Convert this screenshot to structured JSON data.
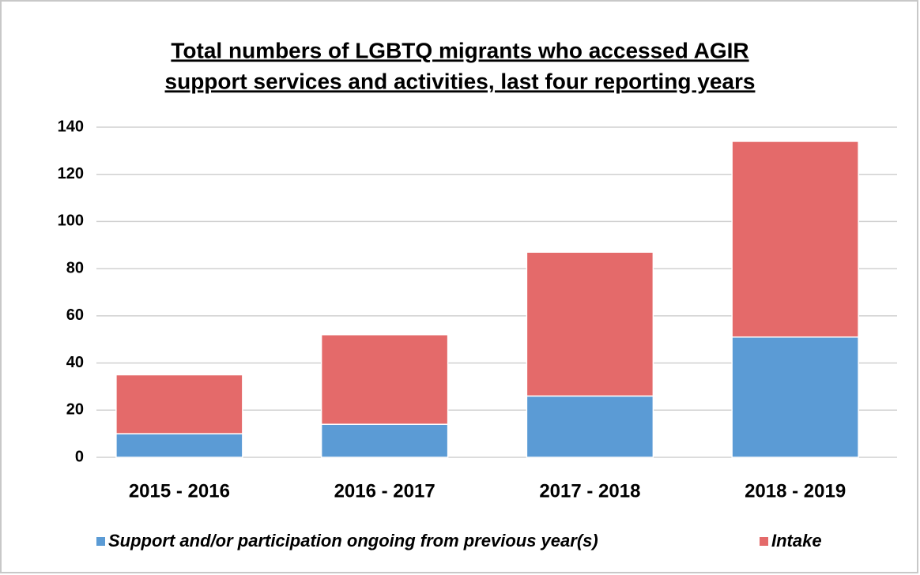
{
  "chart_data": {
    "type": "stacked-bar",
    "title": [
      "Total numbers of LGBTQ migrants who accessed AGIR",
      "support services and activities, last four reporting years"
    ],
    "categories": [
      "2015 - 2016",
      "2016 - 2017",
      "2017 - 2018",
      "2018 - 2019"
    ],
    "series": [
      {
        "name": "Support and/or participation ongoing from previous year(s)",
        "color": "#5b9bd5",
        "values": [
          10,
          14,
          26,
          51
        ]
      },
      {
        "name": "Intake",
        "color": "#e46a6a",
        "values": [
          25,
          38,
          61,
          83
        ]
      }
    ],
    "ylim": [
      0,
      140
    ],
    "yticks": [
      0,
      20,
      40,
      60,
      80,
      100,
      120,
      140
    ],
    "grid": true,
    "legend": "bottom"
  }
}
